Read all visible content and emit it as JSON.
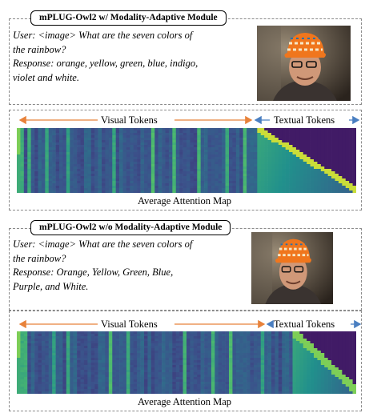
{
  "panels": [
    {
      "title": "mPLUG-Owl2 w/ Modality-Adaptive Module",
      "lines": [
        "User: <image> What are the seven colors of",
        "the rainbow?",
        "Response: orange, yellow, green, blue, indigo,",
        "violet and white."
      ],
      "visual_label": "Visual Tokens",
      "textual_label": "Textual Tokens",
      "caption": "Average Attention Map"
    },
    {
      "title": "mPLUG-Owl2 w/o Modality-Adaptive Module",
      "lines": [
        "User: <image> What are the seven colors of",
        "the rainbow?",
        "Response: Orange, Yellow, Green, Blue,",
        "Purple, and White."
      ],
      "visual_label": "Visual Tokens",
      "textual_label": "Textual Tokens",
      "caption": "Average Attention Map"
    }
  ],
  "colors": {
    "visual_arrow": "#e8823a",
    "textual_arrow": "#4a7fc1",
    "heat_low": "#3b0f6f",
    "heat_mid": "#21908c",
    "heat_high": "#fde725"
  }
}
